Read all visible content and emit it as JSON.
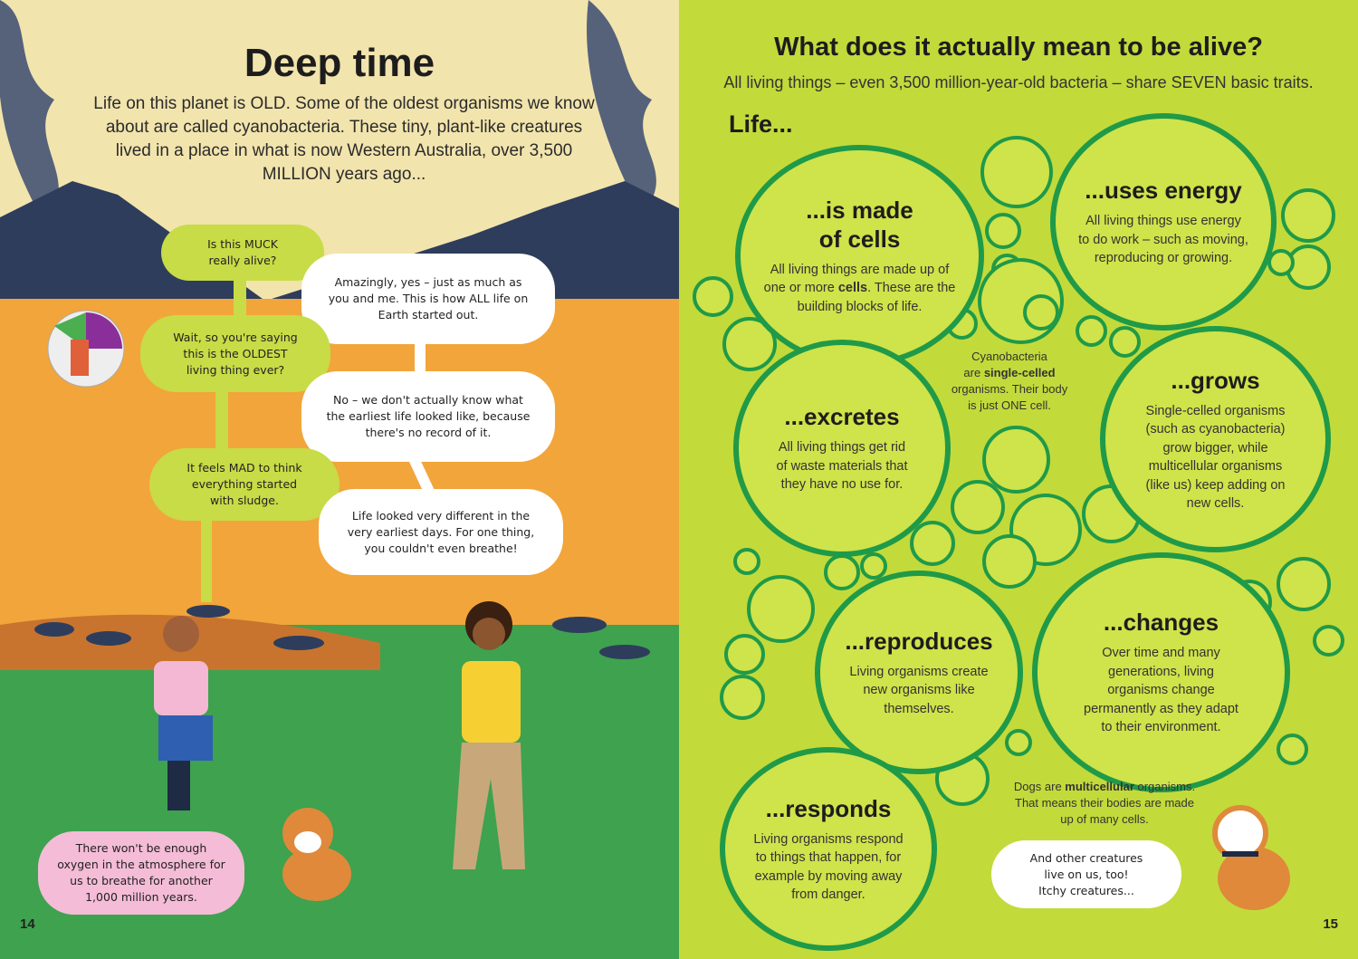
{
  "left_page": {
    "title": "Deep time",
    "intro": "Life on this planet is OLD. Some of the oldest organisms we know about are called cyanobacteria. These tiny, plant-like creatures lived in a place in what is now Western Australia, over 3,500 MILLION years ago...",
    "bubbles": [
      "Is this MUCK\nreally alive?",
      "Amazingly, yes – just as much as\nyou and me. This is how ALL life on\nEarth started out.",
      "Wait, so you're saying\nthis is the OLDEST\nliving thing ever?",
      "No – we don't actually know what\nthe earliest life looked like, because\nthere's no record of it.",
      "It feels MAD to think\neverything started\nwith sludge.",
      "Life looked very different in the\nvery earliest days. For one thing,\nyou couldn't even breathe!",
      "There won't be enough\noxygen in the atmosphere for\nus to breathe for another\n1,000 million years."
    ],
    "page_number": "14"
  },
  "right_page": {
    "title": "What does it actually mean to be alive?",
    "subtitle": "All living things – even 3,500 million-year-old bacteria – share SEVEN basic traits.",
    "life_label": "Life...",
    "traits": [
      {
        "heading": "...is made\nof cells",
        "text_before": "All living things are made up of\none or more ",
        "bold": "cells",
        "text_after": ". These are the\nbuilding blocks of life."
      },
      {
        "heading": "...uses energy",
        "text": "All living things use energy\nto do work – such as moving,\nreproducing or growing."
      },
      {
        "heading": "...excretes",
        "text": "All living things get rid\nof waste materials that\nthey have no use for."
      },
      {
        "heading": "...grows",
        "text": "Single-celled organisms\n(such as cyanobacteria)\ngrow bigger, while\nmulticellular organisms\n(like us) keep adding on\nnew cells."
      },
      {
        "heading": "...reproduces",
        "text": "Living organisms create\nnew organisms like\nthemselves."
      },
      {
        "heading": "...changes",
        "text": "Over time and many\ngenerations, living\norganisms change\npermanently as they adapt\nto their environment."
      },
      {
        "heading": "...responds",
        "text": "Living organisms respond\nto things that happen, for\nexample by moving away\nfrom danger."
      }
    ],
    "cyano_note": {
      "before": "Cyanobacteria\nare ",
      "bold": "single-celled",
      "after": "\norganisms. Their body\nis just ONE cell."
    },
    "dog_note": {
      "before": "Dogs are ",
      "bold": "multicellular",
      "after": " organisms.\nThat means their bodies are made\nup of many cells."
    },
    "dog_bubble": "And other creatures\nlive on us, too!\nItchy creatures...",
    "page_number": "15"
  },
  "colors": {
    "lime": "#c3da3b",
    "circle_border": "#1f9a48",
    "orange": "#f2a53a",
    "sky": "#f2e4ad",
    "mountain": "#2e3d5c",
    "grass": "#3ea24f"
  }
}
